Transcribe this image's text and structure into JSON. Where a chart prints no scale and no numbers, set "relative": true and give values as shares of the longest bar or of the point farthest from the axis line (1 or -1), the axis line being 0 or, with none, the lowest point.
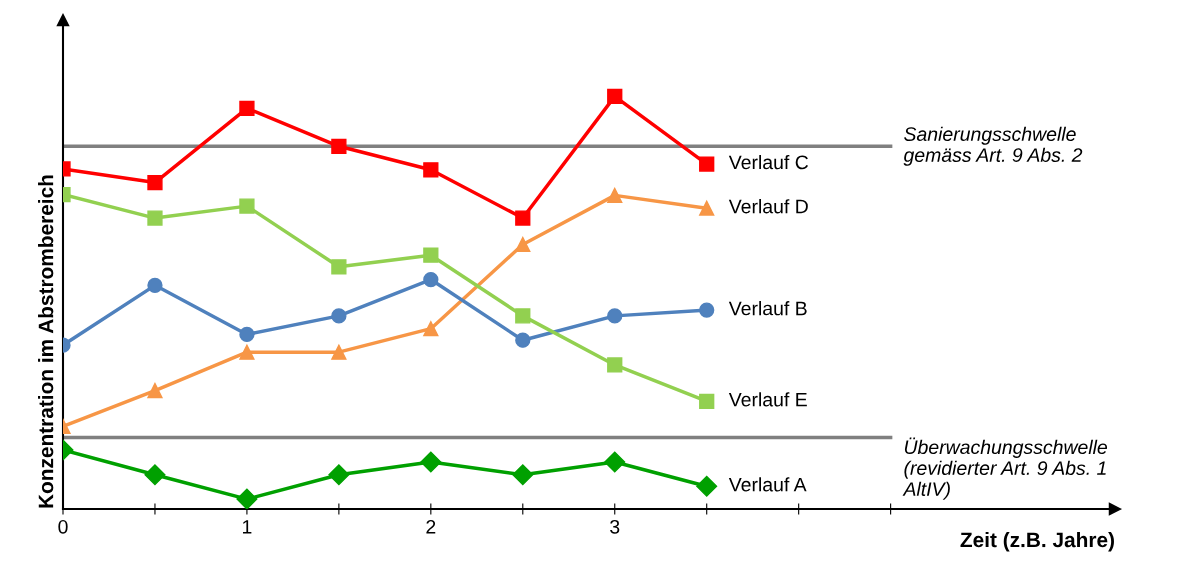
{
  "chart_data": {
    "type": "line",
    "relative": true,
    "xlabel": "Zeit (z.B. Jahre)",
    "ylabel": "Konzentration im Abstrombereich",
    "x": [
      0,
      0.5,
      1,
      1.5,
      2,
      2.5,
      3,
      3.5
    ],
    "xlim": [
      0,
      5.72
    ],
    "xticks": [
      0,
      {
        "value": 0.5,
        "label": null
      },
      1,
      {
        "value": 1.5,
        "label": null
      },
      2,
      {
        "value": 2.5,
        "label": null
      },
      3,
      {
        "value": 3.5,
        "label": null
      },
      {
        "value": 4,
        "label": null
      },
      {
        "value": 4.5,
        "label": null
      }
    ],
    "grid": false,
    "legend": false,
    "line_style": "solid",
    "series": [
      {
        "name": "Verlauf C",
        "color": "#ff0000",
        "marker": "square",
        "values": [
          0.824,
          0.791,
          0.971,
          0.879,
          0.822,
          0.705,
          1,
          0.836
        ]
      },
      {
        "name": "Verlauf D",
        "color": "#f79646",
        "marker": "triangle",
        "values": [
          0.2,
          0.287,
          0.38,
          0.38,
          0.437,
          0.641,
          0.76,
          0.729
        ]
      },
      {
        "name": "Verlauf B",
        "color": "#4f81bd",
        "marker": "circle",
        "values": [
          0.397,
          0.542,
          0.423,
          0.468,
          0.556,
          0.409,
          0.468,
          0.482
        ]
      },
      {
        "name": "Verlauf E",
        "color": "#92d050",
        "marker": "square",
        "values": [
          0.762,
          0.705,
          0.734,
          0.587,
          0.615,
          0.468,
          0.349,
          0.261
        ]
      },
      {
        "name": "Verlauf A",
        "color": "#00a000",
        "marker": "diamond",
        "values": [
          0.143,
          0.083,
          0.024,
          0.083,
          0.114,
          0.083,
          0.114,
          0.055
        ]
      }
    ],
    "ref_lines": [
      {
        "axis": "y",
        "value": 0.879,
        "label": "Sanierungsschwelle\ngemäss Art. 9 Abs. 2",
        "color": "#808080"
      },
      {
        "axis": "y",
        "value": 0.173,
        "label": "Überwachungsschwelle\n(revidierter Art. 9 Abs. 1\nAltIV)",
        "color": "#808080"
      }
    ]
  }
}
